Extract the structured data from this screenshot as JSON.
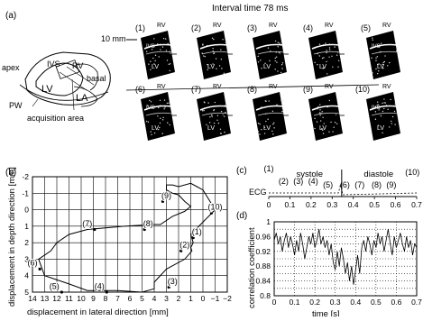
{
  "panel_a": {
    "label": "(a)",
    "interval_title": "Interval time 78 ms",
    "scale_label": "10 mm",
    "schematic": {
      "labels": [
        "apex",
        "IVS",
        "RV",
        "basal",
        "LV",
        "LA",
        "PW",
        "acquisition area"
      ]
    },
    "frames": [
      {
        "index": "(1)",
        "rv": "RV",
        "ivs": "IVS",
        "lv": "LV"
      },
      {
        "index": "(2)",
        "rv": "RV",
        "ivs": "",
        "lv": "LV"
      },
      {
        "index": "(3)",
        "rv": "RV",
        "ivs": "",
        "lv": "LV"
      },
      {
        "index": "(4)",
        "rv": "RV",
        "ivs": "",
        "lv": "LV"
      },
      {
        "index": "(5)",
        "rv": "RV",
        "ivs": "IVS",
        "lv": "LV"
      },
      {
        "index": "(6)",
        "rv": "RV",
        "ivs": "IVS",
        "lv": "LV"
      },
      {
        "index": "(7)",
        "rv": "RV",
        "ivs": "",
        "lv": "LV"
      },
      {
        "index": "(8)",
        "rv": "RV",
        "ivs": "",
        "lv": "LV"
      },
      {
        "index": "(9)",
        "rv": "RV",
        "ivs": "",
        "lv": "LV"
      },
      {
        "index": "(10)",
        "rv": "RV",
        "ivs": "IVS",
        "lv": "LV"
      }
    ]
  },
  "panel_b": {
    "label": "(b)",
    "chart_data": {
      "type": "line",
      "xlabel": "displacement in lateral direction [mm]",
      "ylabel": "displacement in depth direction [mm]",
      "x_ticks": [
        "14",
        "13",
        "12",
        "11",
        "10",
        "9",
        "8",
        "7",
        "6",
        "5",
        "4",
        "3",
        "2",
        "1",
        "0",
        "−1",
        "−2"
      ],
      "y_ticks": [
        "-2",
        "-1",
        "0",
        "1",
        "2",
        "3",
        "4",
        "5"
      ],
      "xlim": [
        14,
        -2
      ],
      "ylim": [
        -2,
        5
      ],
      "x_reversed": true,
      "y_reversed": true,
      "grid": true,
      "series": [
        {
          "x": [
            -1,
            1,
            0.8,
            1,
            0.9,
            1.5,
            3,
            4,
            4,
            5,
            7,
            9.5,
            11,
            13,
            13.5,
            12.5,
            12,
            11,
            9.5,
            6.5,
            4,
            3.5,
            2.5,
            1.5,
            1,
            1.5,
            2,
            2.5,
            3,
            3,
            2.5,
            2,
            1,
            0.5,
            0,
            -0.5,
            -1
          ],
          "y": [
            0,
            1.5,
            2.0,
            2.3,
            2.5,
            3.0,
            3.6,
            4.4,
            4.8,
            5.0,
            4.9,
            4.9,
            4.5,
            4.0,
            3.0,
            2.5,
            2.0,
            1.5,
            1.2,
            1.0,
            0.9,
            0.9,
            0.4,
            0.1,
            -0.2,
            -0.5,
            -0.9,
            -1.0,
            -1.2,
            -1.5,
            -1.5,
            -1.4,
            -1.6,
            -1.4,
            -1.2,
            -0.6,
            0
          ]
        }
      ],
      "annotations": [
        {
          "text": "(1)",
          "x": 0.5,
          "y": 1.5
        },
        {
          "text": "(2)",
          "x": 1.5,
          "y": 2.3
        },
        {
          "text": "(3)",
          "x": 2.5,
          "y": 4.5
        },
        {
          "text": "(4)",
          "x": 8.5,
          "y": 4.8
        },
        {
          "text": "(5)",
          "x": 12.2,
          "y": 4.8
        },
        {
          "text": "(6)",
          "x": 14,
          "y": 3.4
        },
        {
          "text": "(7)",
          "x": 9.5,
          "y": 1.0
        },
        {
          "text": "(8)",
          "x": 4.5,
          "y": 1.0
        },
        {
          "text": "(9)",
          "x": 3,
          "y": -0.7
        },
        {
          "text": "(10)",
          "x": -1,
          "y": 0.0
        }
      ]
    }
  },
  "panel_c": {
    "label": "(c)",
    "systole": "systole",
    "diastole": "diastole",
    "ecg": "ECG",
    "frame_marks": [
      "(1)",
      "(2)",
      "(3)",
      "(4)",
      "(5)",
      "(6)",
      "(7)",
      "(8)",
      "(9)",
      "(10)"
    ],
    "x_ticks": [
      "0",
      "0.1",
      "0.2",
      "0.3",
      "0.4",
      "0.5",
      "0.6",
      "0.7"
    ]
  },
  "panel_d": {
    "label": "(d)",
    "chart_data": {
      "type": "line",
      "xlabel": "time [s]",
      "ylabel": "correlation coefficient",
      "x_ticks": [
        "0",
        "0.1",
        "0.2",
        "0.3",
        "0.4",
        "0.5",
        "0.6",
        "0.7"
      ],
      "y_ticks": [
        "1",
        "0.96",
        "0.92",
        "0.88",
        "0.84",
        "0.8"
      ],
      "xlim": [
        0,
        0.7
      ],
      "ylim": [
        0.8,
        1.0
      ],
      "grid": true,
      "series": [
        {
          "x": [
            0.0,
            0.01,
            0.02,
            0.03,
            0.04,
            0.05,
            0.06,
            0.07,
            0.08,
            0.09,
            0.1,
            0.11,
            0.12,
            0.13,
            0.14,
            0.15,
            0.16,
            0.17,
            0.18,
            0.19,
            0.2,
            0.21,
            0.22,
            0.23,
            0.24,
            0.25,
            0.26,
            0.27,
            0.28,
            0.29,
            0.3,
            0.31,
            0.32,
            0.33,
            0.34,
            0.35,
            0.36,
            0.37,
            0.38,
            0.39,
            0.4,
            0.41,
            0.42,
            0.43,
            0.44,
            0.45,
            0.46,
            0.47,
            0.48,
            0.49,
            0.5,
            0.51,
            0.52,
            0.53,
            0.54,
            0.55,
            0.56,
            0.57,
            0.58,
            0.59,
            0.6,
            0.61,
            0.62,
            0.63,
            0.64,
            0.65,
            0.66,
            0.67,
            0.68,
            0.69,
            0.7
          ],
          "y": [
            0.95,
            0.97,
            0.94,
            0.96,
            0.92,
            0.95,
            0.97,
            0.93,
            0.96,
            0.94,
            0.91,
            0.95,
            0.92,
            0.97,
            0.94,
            0.9,
            0.93,
            0.96,
            0.94,
            0.97,
            0.93,
            0.95,
            0.98,
            0.94,
            0.96,
            0.93,
            0.95,
            0.91,
            0.94,
            0.89,
            0.87,
            0.92,
            0.88,
            0.93,
            0.9,
            0.86,
            0.89,
            0.84,
            0.88,
            0.83,
            0.87,
            0.91,
            0.86,
            0.93,
            0.95,
            0.92,
            0.96,
            0.94,
            0.91,
            0.95,
            0.93,
            0.97,
            0.94,
            0.96,
            0.92,
            0.95,
            0.98,
            0.94,
            0.91,
            0.96,
            0.93,
            0.95,
            0.97,
            0.94,
            0.92,
            0.96,
            0.93,
            0.95,
            0.91,
            0.94,
            0.93
          ]
        }
      ]
    }
  }
}
